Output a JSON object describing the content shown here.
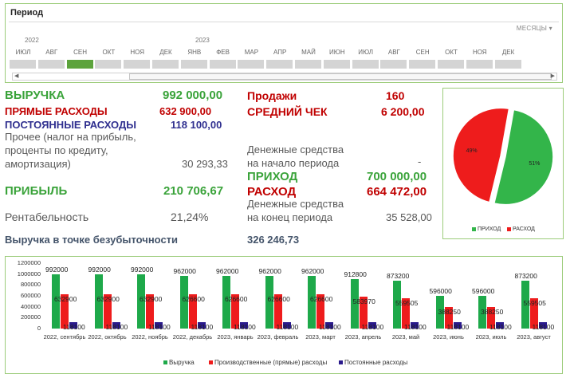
{
  "slicer": {
    "title": "Период",
    "unit_label": "МЕСЯЦЫ",
    "unit_icon": "chevron-down-icon",
    "years": [
      "2022",
      "2023"
    ],
    "months": [
      "ИЮЛ",
      "АВГ",
      "СЕН",
      "ОКТ",
      "НОЯ",
      "ДЕК",
      "ЯНВ",
      "ФЕВ",
      "МАР",
      "АПР",
      "МАЙ",
      "ИЮН",
      "ИЮЛ",
      "АВГ",
      "СЕН",
      "ОКТ",
      "НОЯ",
      "ДЕК"
    ],
    "selected_index": 2,
    "selected_color": "#5ca33c"
  },
  "kpi": {
    "revenue_label": "ВЫРУЧКА",
    "revenue_value": "992 000,00",
    "direct_label": "ПРЯМЫЕ РАСХОДЫ",
    "direct_value": "632 900,00",
    "fixed_label": "ПОСТОЯННЫЕ РАСХОДЫ",
    "fixed_value": "118 100,00",
    "other_label_1": "Прочее (налог на прибыль,",
    "other_label_2": "проценты по кредиту,",
    "other_label_3": "амортизация)",
    "other_value": "30 293,33",
    "profit_label": "ПРИБЫЛЬ",
    "profit_value": "210 706,67",
    "margin_label": "Рентабельность",
    "margin_value": "21,24%",
    "breakeven_label": "Выручка в точке безубыточности",
    "breakeven_value": "326 246,73",
    "sales_label": "Продажи",
    "sales_value": "160",
    "avg_check_label": "СРЕДНИЙ ЧЕК",
    "avg_check_value": "6 200,00",
    "cash_start_label_1": "Денежные средства",
    "cash_start_label_2": "на начало периода",
    "cash_start_value": "-",
    "income_label": "ПРИХОД",
    "income_value": "700 000,00",
    "expense_label": "РАСХОД",
    "expense_value": "664 472,00",
    "cash_end_label_1": "Денежные средства",
    "cash_end_label_2": "на конец периода",
    "cash_end_value": "35 528,00"
  },
  "chart_data": [
    {
      "type": "pie",
      "slices": [
        {
          "name": "ПРИХОД",
          "value": 51,
          "label": "51%",
          "color": "#33b54a"
        },
        {
          "name": "РАСХОД",
          "value": 49,
          "label": "49%",
          "color": "#ee1c1c"
        }
      ],
      "legend": "bottom"
    },
    {
      "type": "bar",
      "categories": [
        "2022, сентябрь",
        "2022, октябрь",
        "2022, ноябрь",
        "2022, декабрь",
        "2023, январь",
        "2023, февраль",
        "2023, март",
        "2023, апрель",
        "2023, май",
        "2023, июнь",
        "2023, июль",
        "2023, август"
      ],
      "series": [
        {
          "name": "Выручка",
          "color": "#1ea94a",
          "values": [
            992000,
            992000,
            992000,
            962000,
            962000,
            962000,
            962000,
            912800,
            873200,
            596000,
            596000,
            873200
          ]
        },
        {
          "name": "Производственные (прямые) расходы",
          "color": "#ee1c1c",
          "values": [
            632900,
            632900,
            632900,
            626600,
            626600,
            626600,
            626600,
            583970,
            559505,
            388250,
            388250,
            559505
          ]
        },
        {
          "name": "Постоянные расходы",
          "color": "#2a1a8c",
          "values": [
            118100,
            118100,
            118100,
            118100,
            118100,
            118100,
            118100,
            118100,
            118100,
            118100,
            118100,
            118100
          ]
        }
      ],
      "yticks": [
        "0",
        "200000",
        "400000",
        "600000",
        "800000",
        "1000000",
        "1200000"
      ],
      "ylim": [
        0,
        1200000
      ],
      "legend": "bottom"
    }
  ]
}
